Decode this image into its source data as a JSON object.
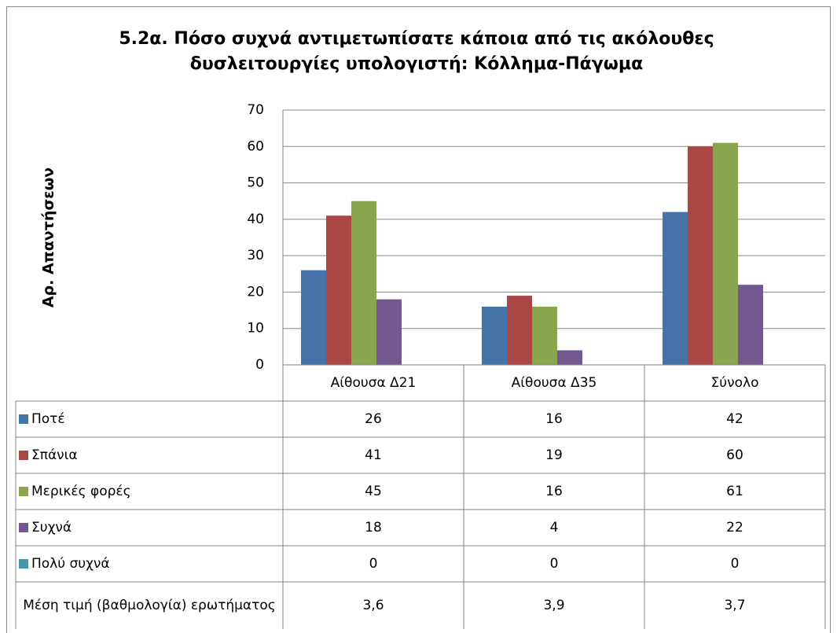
{
  "chart_data": {
    "type": "bar",
    "title": "5.2α. Πόσο συχνά αντιμετωπίσατε κάποια από τις ακόλουθες δυσλειτουργίες υπολογιστή: Κόλλημα-Πάγωμα",
    "y_axis_label": "Αρ. Απαντήσεων",
    "categories": [
      "Αίθουσα Δ21",
      "Αίθουσα Δ35",
      "Σύνολο"
    ],
    "series": [
      {
        "name": "Ποτέ",
        "color": "#4572a7",
        "values": [
          26,
          16,
          42
        ]
      },
      {
        "name": "Σπάνια",
        "color": "#aa4643",
        "values": [
          41,
          19,
          60
        ]
      },
      {
        "name": "Μερικές φορές",
        "color": "#89a54e",
        "values": [
          45,
          16,
          61
        ]
      },
      {
        "name": "Συχνά",
        "color": "#71588f",
        "values": [
          18,
          4,
          22
        ]
      },
      {
        "name": "Πολύ συχνά",
        "color": "#4198af",
        "values": [
          0,
          0,
          0
        ]
      }
    ],
    "extra_row": {
      "name": "Μέση τιμή (βαθμολογία) ερωτήματος",
      "values": [
        3.6,
        3.9,
        3.7
      ],
      "value_labels": [
        "3,6",
        "3,9",
        "3,7"
      ]
    },
    "ylim": [
      0,
      70
    ],
    "yticks": [
      0,
      10,
      20,
      30,
      40,
      50,
      60,
      70
    ],
    "grid": true
  }
}
